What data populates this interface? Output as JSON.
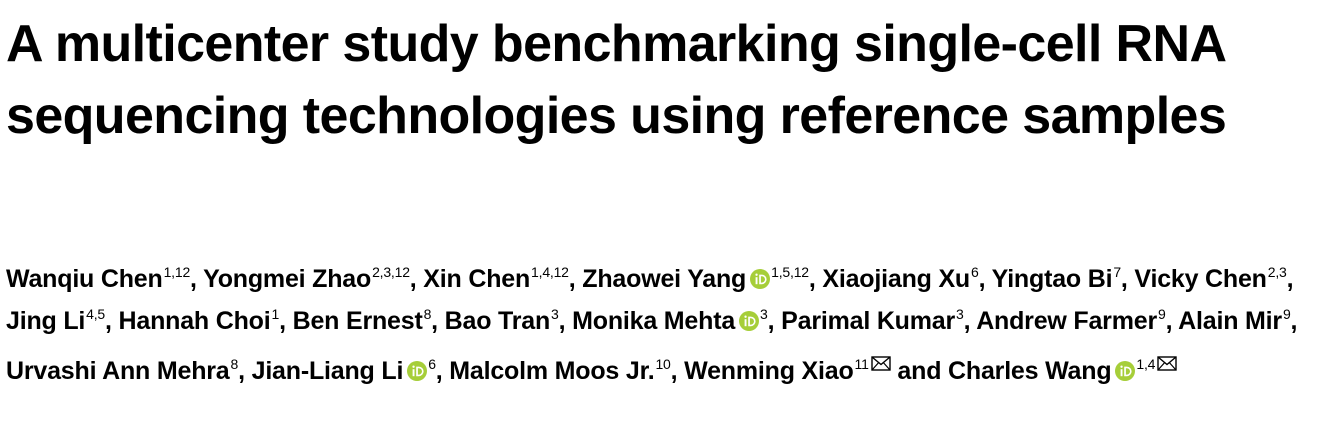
{
  "title": "A multicenter study benchmarking single-cell RNA sequencing technologies using reference samples",
  "colors": {
    "orcid": "#A6CE39",
    "text": "#000000"
  },
  "authors": [
    {
      "name": "Wanqiu Chen",
      "aff": "1,12",
      "sep": ", "
    },
    {
      "name": "Yongmei Zhao",
      "aff": "2,3,12",
      "sep": ", "
    },
    {
      "name": "Xin Chen",
      "aff": "1,4,12",
      "sep": ", "
    },
    {
      "name": "Zhaowei Yang",
      "aff": "1,5,12",
      "orcid": true,
      "sep": ", "
    },
    {
      "name": "Xiaojiang Xu",
      "aff": "6",
      "sep": ", "
    },
    {
      "name": "Yingtao Bi",
      "aff": "7",
      "sep": ", "
    },
    {
      "name": "Vicky Chen",
      "aff": "2,3",
      "sep": ", "
    },
    {
      "name": "Jing Li",
      "aff": "4,5",
      "sep": ", "
    },
    {
      "name": "Hannah Choi",
      "aff": "1",
      "sep": ", "
    },
    {
      "name": "Ben Ernest",
      "aff": "8",
      "sep": ", "
    },
    {
      "name": "Bao Tran",
      "aff": "3",
      "sep": ", "
    },
    {
      "name": "Monika Mehta",
      "aff": "3",
      "orcid": true,
      "sep": ", "
    },
    {
      "name": "Parimal Kumar",
      "aff": "3",
      "sep": ", "
    },
    {
      "name": "Andrew Farmer",
      "aff": "9",
      "sep": ", "
    },
    {
      "name": "Alain Mir",
      "aff": "9",
      "sep": ", "
    },
    {
      "name": "Urvashi Ann Mehra",
      "aff": "8",
      "sep": ", "
    },
    {
      "name": "Jian-Liang Li",
      "aff": "6",
      "orcid": true,
      "sep": ", "
    },
    {
      "name": "Malcolm Moos Jr.",
      "aff": "10",
      "sep": ", "
    },
    {
      "name": "Wenming Xiao",
      "aff": "11",
      "email": true,
      "sep": " and "
    },
    {
      "name": "Charles Wang",
      "aff": "1,4",
      "orcid": true,
      "email": true,
      "sep": ""
    }
  ],
  "icons": {
    "orcid": "orcid-icon",
    "email": "envelope-icon"
  }
}
